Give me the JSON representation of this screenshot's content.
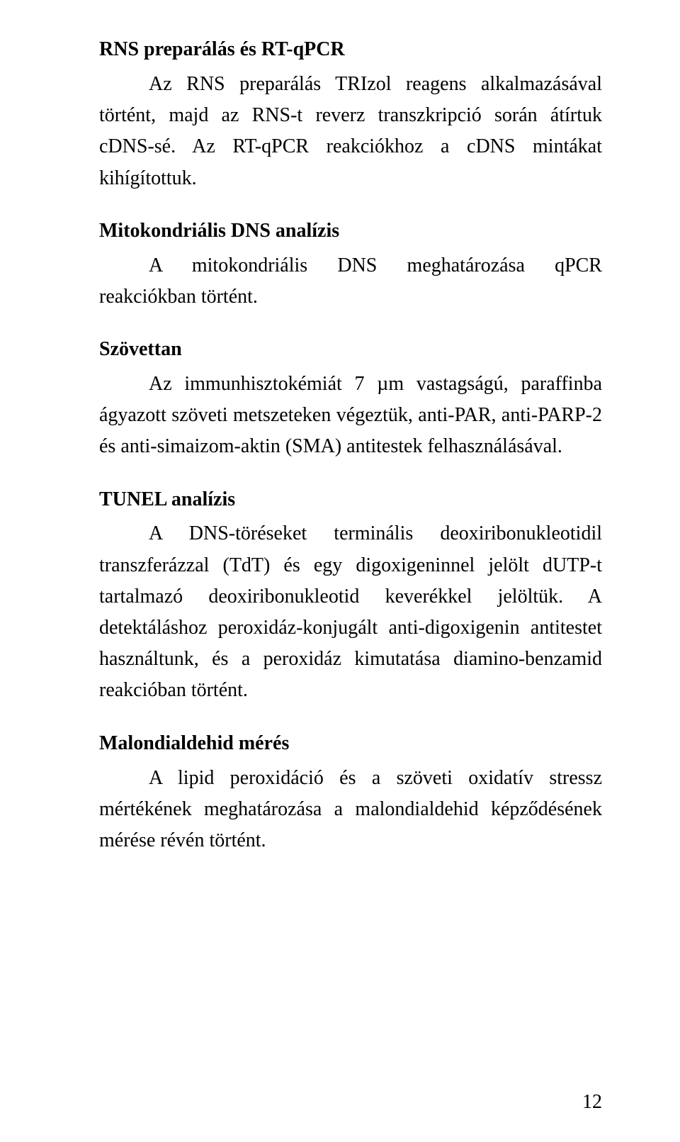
{
  "sections": {
    "s1": {
      "heading": "RNS preparálás és RT-qPCR",
      "body": "Az RNS preparálás TRIzol reagens alkalmazásával történt, majd az RNS-t reverz transzkripció során átírtuk cDNS-sé. Az RT-qPCR reakciókhoz a cDNS mintákat kihígítottuk."
    },
    "s2": {
      "heading": "Mitokondriális DNS analízis",
      "body": "A mitokondriális DNS meghatározása qPCR reakciókban történt."
    },
    "s3": {
      "heading": "Szövettan",
      "body": "Az immunhisztokémiát 7 µm vastagságú, paraffinba ágyazott szöveti metszeteken végeztük, anti-PAR, anti-PARP-2 és anti-simaizom-aktin (SMA) antitestek felhasználásával."
    },
    "s4": {
      "heading": "TUNEL analízis",
      "body": "A DNS-töréseket terminális deoxiribonukleotidil transzferázzal (TdT) és egy digoxigeninnel jelölt dUTP-t tartalmazó deoxiribonukleotid keverékkel jelöltük. A detektáláshoz peroxidáz-konjugált anti-digoxigenin antitestet használtunk, és a peroxidáz kimutatása diamino-benzamid reakcióban történt."
    },
    "s5": {
      "heading": "Malondialdehid mérés",
      "body": "A lipid peroxidáció és a szöveti oxidatív stressz mértékének meghatározása a malondialdehid képződésének mérése révén történt."
    }
  },
  "page_number": "12"
}
